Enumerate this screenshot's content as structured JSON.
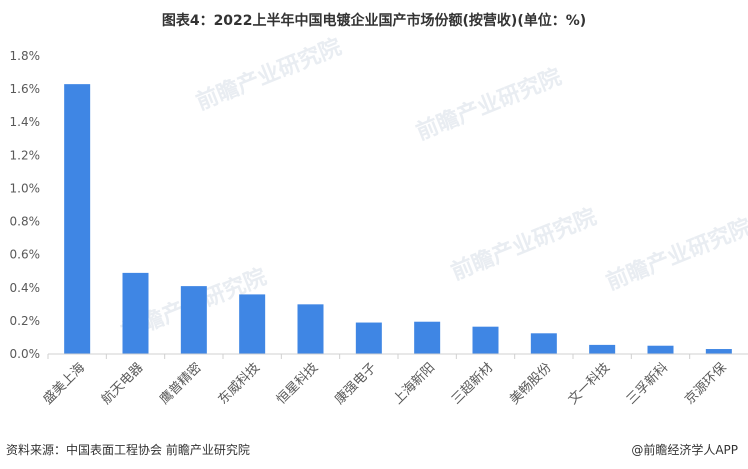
{
  "title": "图表4：2022上半年中国电镀企业国产市场份额(按营收)(单位：%)",
  "source": "资料来源：中国表面工程协会 前瞻产业研究院",
  "brand": "@前瞻经济学人APP",
  "watermark": "前瞻产业研究院",
  "colors": {
    "bar": "#3f86e4",
    "axis": "#d0d0d0",
    "text": "#595959"
  },
  "chart_data": {
    "type": "bar",
    "title": "图表4：2022上半年中国电镀企业国产市场份额(按营收)(单位：%)",
    "categories": [
      "盛美上海",
      "航天电器",
      "鹰普精密",
      "东威科技",
      "恒星科技",
      "康强电子",
      "上海新阳",
      "三超新材",
      "美畅股份",
      "文一科技",
      "三孚新科",
      "京源环保"
    ],
    "values": [
      1.63,
      0.49,
      0.41,
      0.36,
      0.3,
      0.19,
      0.195,
      0.165,
      0.125,
      0.055,
      0.05,
      0.03
    ],
    "ylim": [
      0,
      1.8
    ],
    "yticks": [
      "0.0%",
      "0.2%",
      "0.4%",
      "0.6%",
      "0.8%",
      "1.0%",
      "1.2%",
      "1.4%",
      "1.6%",
      "1.8%"
    ],
    "grid": false,
    "legend": "none"
  }
}
